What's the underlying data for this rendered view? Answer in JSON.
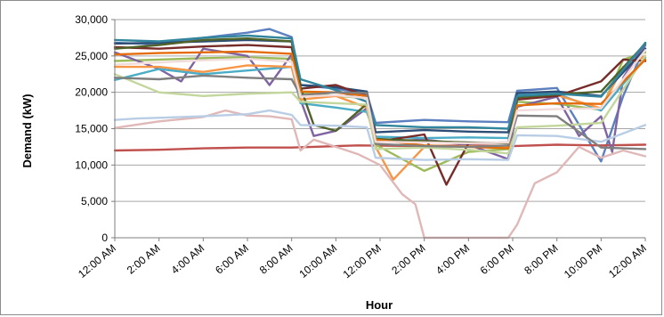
{
  "chart_data": {
    "type": "line",
    "title": "",
    "xlabel": "Hour",
    "ylabel": "Demand (kW)",
    "ylim": [
      0,
      30000
    ],
    "xlim": [
      0,
      24
    ],
    "y_ticks": [
      "0",
      "5,000",
      "10,000",
      "15,000",
      "20,000",
      "25,000",
      "30,000"
    ],
    "x_ticks": [
      "12:00 AM",
      "2:00 AM",
      "4:00 AM",
      "6:00 AM",
      "8:00 AM",
      "10:00 AM",
      "12:00 PM",
      "2:00 PM",
      "4:00 PM",
      "6:00 PM",
      "8:00 PM",
      "10:00 PM",
      "12:00 AM"
    ],
    "grid": "horizontal",
    "legend": "none",
    "series": [
      {
        "color": "#5b7fbf",
        "x": [
          0,
          2,
          4,
          6,
          7,
          8,
          8.4,
          10,
          11.4,
          11.8,
          14,
          16,
          17.8,
          18.2,
          20,
          22,
          23,
          24
        ],
        "y": [
          26800,
          26600,
          27500,
          28200,
          28700,
          27600,
          21000,
          20500,
          19800,
          15800,
          16200,
          16000,
          15900,
          20200,
          20600,
          10500,
          19500,
          26500
        ]
      },
      {
        "color": "#c0504d",
        "x": [
          0,
          2,
          4,
          6,
          8,
          9,
          11,
          14,
          16,
          18,
          20,
          22,
          24
        ],
        "y": [
          12000,
          12100,
          12300,
          12400,
          12400,
          12500,
          12700,
          12600,
          12700,
          12600,
          12800,
          12700,
          12800
        ]
      },
      {
        "color": "#9bbb59",
        "x": [
          0,
          2,
          4,
          6,
          8,
          8.4,
          10,
          11.4,
          11.8,
          14,
          16,
          17.8,
          18.2,
          20,
          22,
          23,
          24
        ],
        "y": [
          24300,
          24500,
          24700,
          24800,
          24600,
          20000,
          19500,
          19200,
          12800,
          9200,
          11800,
          12200,
          18700,
          18400,
          17600,
          24500,
          25500
        ]
      },
      {
        "color": "#8064a2",
        "x": [
          0,
          2,
          3,
          4,
          6,
          7,
          8,
          8.4,
          9,
          10,
          11.4,
          11.8,
          14,
          16,
          17.8,
          18.2,
          20,
          21,
          22,
          22.5,
          23,
          24
        ],
        "y": [
          25500,
          23200,
          21500,
          26000,
          25000,
          21000,
          25200,
          19000,
          14000,
          14700,
          17800,
          13200,
          13500,
          12800,
          10800,
          18000,
          19400,
          14000,
          16700,
          11800,
          22000,
          26800
        ]
      },
      {
        "color": "#4bacc6",
        "x": [
          0,
          2,
          4,
          6,
          8,
          8.4,
          10,
          11.4,
          11.8,
          14,
          16,
          17.8,
          18.2,
          20,
          22,
          24
        ],
        "y": [
          21700,
          23200,
          22500,
          23000,
          23500,
          18500,
          17900,
          17300,
          13900,
          13700,
          13800,
          13700,
          19700,
          19800,
          17500,
          24800
        ]
      },
      {
        "color": "#f79646",
        "x": [
          0,
          2,
          4,
          6,
          8,
          8.4,
          10,
          11.4,
          11.8,
          12.6,
          14,
          16,
          17.8,
          18.2,
          20,
          22,
          23,
          24
        ],
        "y": [
          23500,
          23500,
          22800,
          23700,
          23500,
          19000,
          19500,
          17900,
          12500,
          8000,
          12500,
          12600,
          12400,
          19100,
          19600,
          17800,
          23500,
          25000
        ]
      },
      {
        "color": "#2c4d75",
        "x": [
          0,
          2,
          4,
          6,
          8,
          8.4,
          10,
          11.4,
          11.8,
          14,
          16,
          17.8,
          18.2,
          20,
          22,
          24
        ],
        "y": [
          26700,
          26800,
          27000,
          27200,
          27000,
          21000,
          20700,
          20100,
          14500,
          14800,
          14600,
          14500,
          19900,
          20100,
          19500,
          26000
        ]
      },
      {
        "color": "#772c2a",
        "x": [
          0,
          2,
          4,
          6,
          8,
          8.4,
          10,
          11.4,
          11.8,
          14,
          15,
          16,
          17.8,
          18.2,
          20,
          22,
          23,
          24
        ],
        "y": [
          26200,
          26000,
          26300,
          26500,
          26200,
          20500,
          21000,
          19500,
          13200,
          14200,
          7300,
          13000,
          13100,
          19000,
          19500,
          21500,
          24500,
          24300
        ]
      },
      {
        "color": "#4f6228",
        "x": [
          0,
          2,
          4,
          6,
          8,
          8.4,
          9,
          10,
          11.4,
          11.8,
          14,
          16,
          17.8,
          18.2,
          20,
          22,
          24
        ],
        "y": [
          26000,
          26500,
          27200,
          27400,
          27000,
          20700,
          15500,
          14700,
          18400,
          13600,
          13300,
          13100,
          13000,
          19300,
          19700,
          20100,
          26700
        ]
      },
      {
        "color": "#e0b8b8",
        "x": [
          0,
          2,
          4,
          5,
          6,
          7,
          8,
          8.4,
          9,
          10,
          11,
          12,
          13,
          13.6,
          14,
          16,
          17,
          17.8,
          18.2,
          19,
          20,
          21,
          22,
          23,
          24
        ],
        "y": [
          15100,
          16000,
          16600,
          17500,
          16800,
          16700,
          16300,
          12000,
          13500,
          12500,
          11500,
          10000,
          6000,
          4600,
          0,
          0,
          0,
          0,
          1800,
          7500,
          9000,
          12500,
          11000,
          12000,
          11200
        ]
      },
      {
        "color": "#b9cde5",
        "x": [
          0,
          1,
          2,
          4,
          6,
          7,
          8,
          8.4,
          10,
          11.4,
          11.8,
          14,
          16,
          17.8,
          18.2,
          20,
          22,
          24
        ],
        "y": [
          16200,
          16400,
          16500,
          16700,
          17000,
          17500,
          16900,
          15500,
          15400,
          15200,
          11000,
          10700,
          10800,
          10700,
          14100,
          14000,
          13200,
          15500
        ]
      },
      {
        "color": "#c3d69b",
        "x": [
          0,
          2,
          4,
          6,
          8,
          8.4,
          10,
          11.4,
          11.8,
          14,
          16,
          17.8,
          18.2,
          20,
          22,
          24
        ],
        "y": [
          22500,
          20000,
          19500,
          19800,
          20000,
          18700,
          18500,
          18300,
          12200,
          12400,
          12100,
          11600,
          15200,
          15400,
          15800,
          25000
        ]
      },
      {
        "color": "#31859c",
        "x": [
          0,
          2,
          4,
          6,
          8,
          8.4,
          10,
          11.4,
          11.8,
          14,
          16,
          17.8,
          18.2,
          20,
          22,
          24
        ],
        "y": [
          27200,
          27000,
          27500,
          27800,
          27400,
          21800,
          20300,
          18700,
          15500,
          15200,
          15200,
          15000,
          19500,
          19800,
          19400,
          26800
        ]
      },
      {
        "color": "#e46c0a",
        "x": [
          0,
          2,
          4,
          6,
          8,
          8.4,
          10,
          11.4,
          11.8,
          14,
          16,
          17.8,
          18.2,
          20,
          22,
          24
        ],
        "y": [
          25200,
          25400,
          25500,
          25600,
          25300,
          20100,
          20000,
          19500,
          13500,
          12700,
          12500,
          12300,
          18200,
          18500,
          18400,
          24500
        ]
      },
      {
        "color": "#7f7f7f",
        "x": [
          0,
          2,
          4,
          6,
          8,
          8.4,
          10,
          11.4,
          11.8,
          14,
          16,
          17.8,
          18.2,
          20,
          22,
          24
        ],
        "y": [
          22000,
          21800,
          22300,
          22000,
          21800,
          19600,
          20000,
          19900,
          12900,
          12600,
          12500,
          12700,
          16800,
          16700,
          12400,
          12200
        ]
      },
      {
        "color": "#f2dcdb",
        "x": [
          0,
          2,
          4,
          6,
          8,
          8.4,
          10,
          11.4,
          11.8,
          14,
          16,
          17.8,
          18.2,
          20,
          22,
          24
        ],
        "y": [
          23800,
          24100,
          24400,
          24600,
          24200,
          19400,
          19600,
          19200,
          13200,
          13100,
          13000,
          13100,
          17500,
          17700,
          17800,
          25800
        ]
      }
    ]
  }
}
